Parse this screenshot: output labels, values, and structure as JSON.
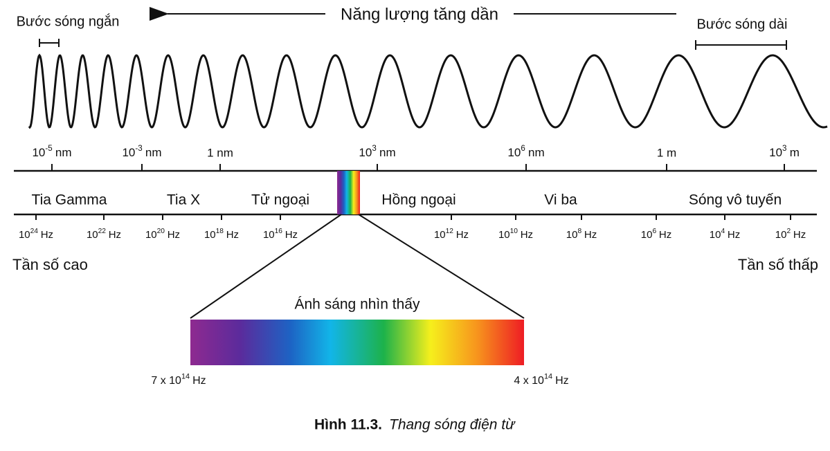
{
  "energy_label": "Năng lượng tăng dần",
  "short_wavelength": "Bước sóng ngắn",
  "long_wavelength": "Bước sóng dài",
  "wavelength_ticks": [
    {
      "base": "10",
      "exp": "-5",
      "unit": "nm"
    },
    {
      "base": "10",
      "exp": "-3",
      "unit": "nm"
    },
    {
      "text": "1 nm"
    },
    {
      "base": "10",
      "exp": "3",
      "unit": "nm"
    },
    {
      "base": "10",
      "exp": "6",
      "unit": "nm"
    },
    {
      "text": "1 m"
    },
    {
      "base": "10",
      "exp": "3",
      "unit": "m"
    }
  ],
  "bands": [
    "Tia Gamma",
    "Tia X",
    "Tử ngoại",
    "Hồng ngoại",
    "Vi ba",
    "Sóng vô tuyến"
  ],
  "frequency_ticks": [
    {
      "base": "10",
      "exp": "24",
      "unit": "Hz"
    },
    {
      "base": "10",
      "exp": "22",
      "unit": "Hz"
    },
    {
      "base": "10",
      "exp": "20",
      "unit": "Hz"
    },
    {
      "base": "10",
      "exp": "18",
      "unit": "Hz"
    },
    {
      "base": "10",
      "exp": "16",
      "unit": "Hz"
    },
    {
      "base": "10",
      "exp": "12",
      "unit": "Hz"
    },
    {
      "base": "10",
      "exp": "10",
      "unit": "Hz"
    },
    {
      "base": "10",
      "exp": "8",
      "unit": "Hz"
    },
    {
      "base": "10",
      "exp": "6",
      "unit": "Hz"
    },
    {
      "base": "10",
      "exp": "4",
      "unit": "Hz"
    },
    {
      "base": "10",
      "exp": "2",
      "unit": "Hz"
    }
  ],
  "high_frequency": "Tần số cao",
  "low_frequency": "Tần số thấp",
  "visible": {
    "title": "Ánh sáng nhìn thấy",
    "left": {
      "prefix": "7 x ",
      "base": "10",
      "exp": "14",
      "unit": "Hz"
    },
    "right": {
      "prefix": "4 x ",
      "base": "10",
      "exp": "14",
      "unit": "Hz"
    }
  },
  "caption": {
    "label": "Hình 11.3.",
    "text": "Thang sóng điện từ"
  }
}
